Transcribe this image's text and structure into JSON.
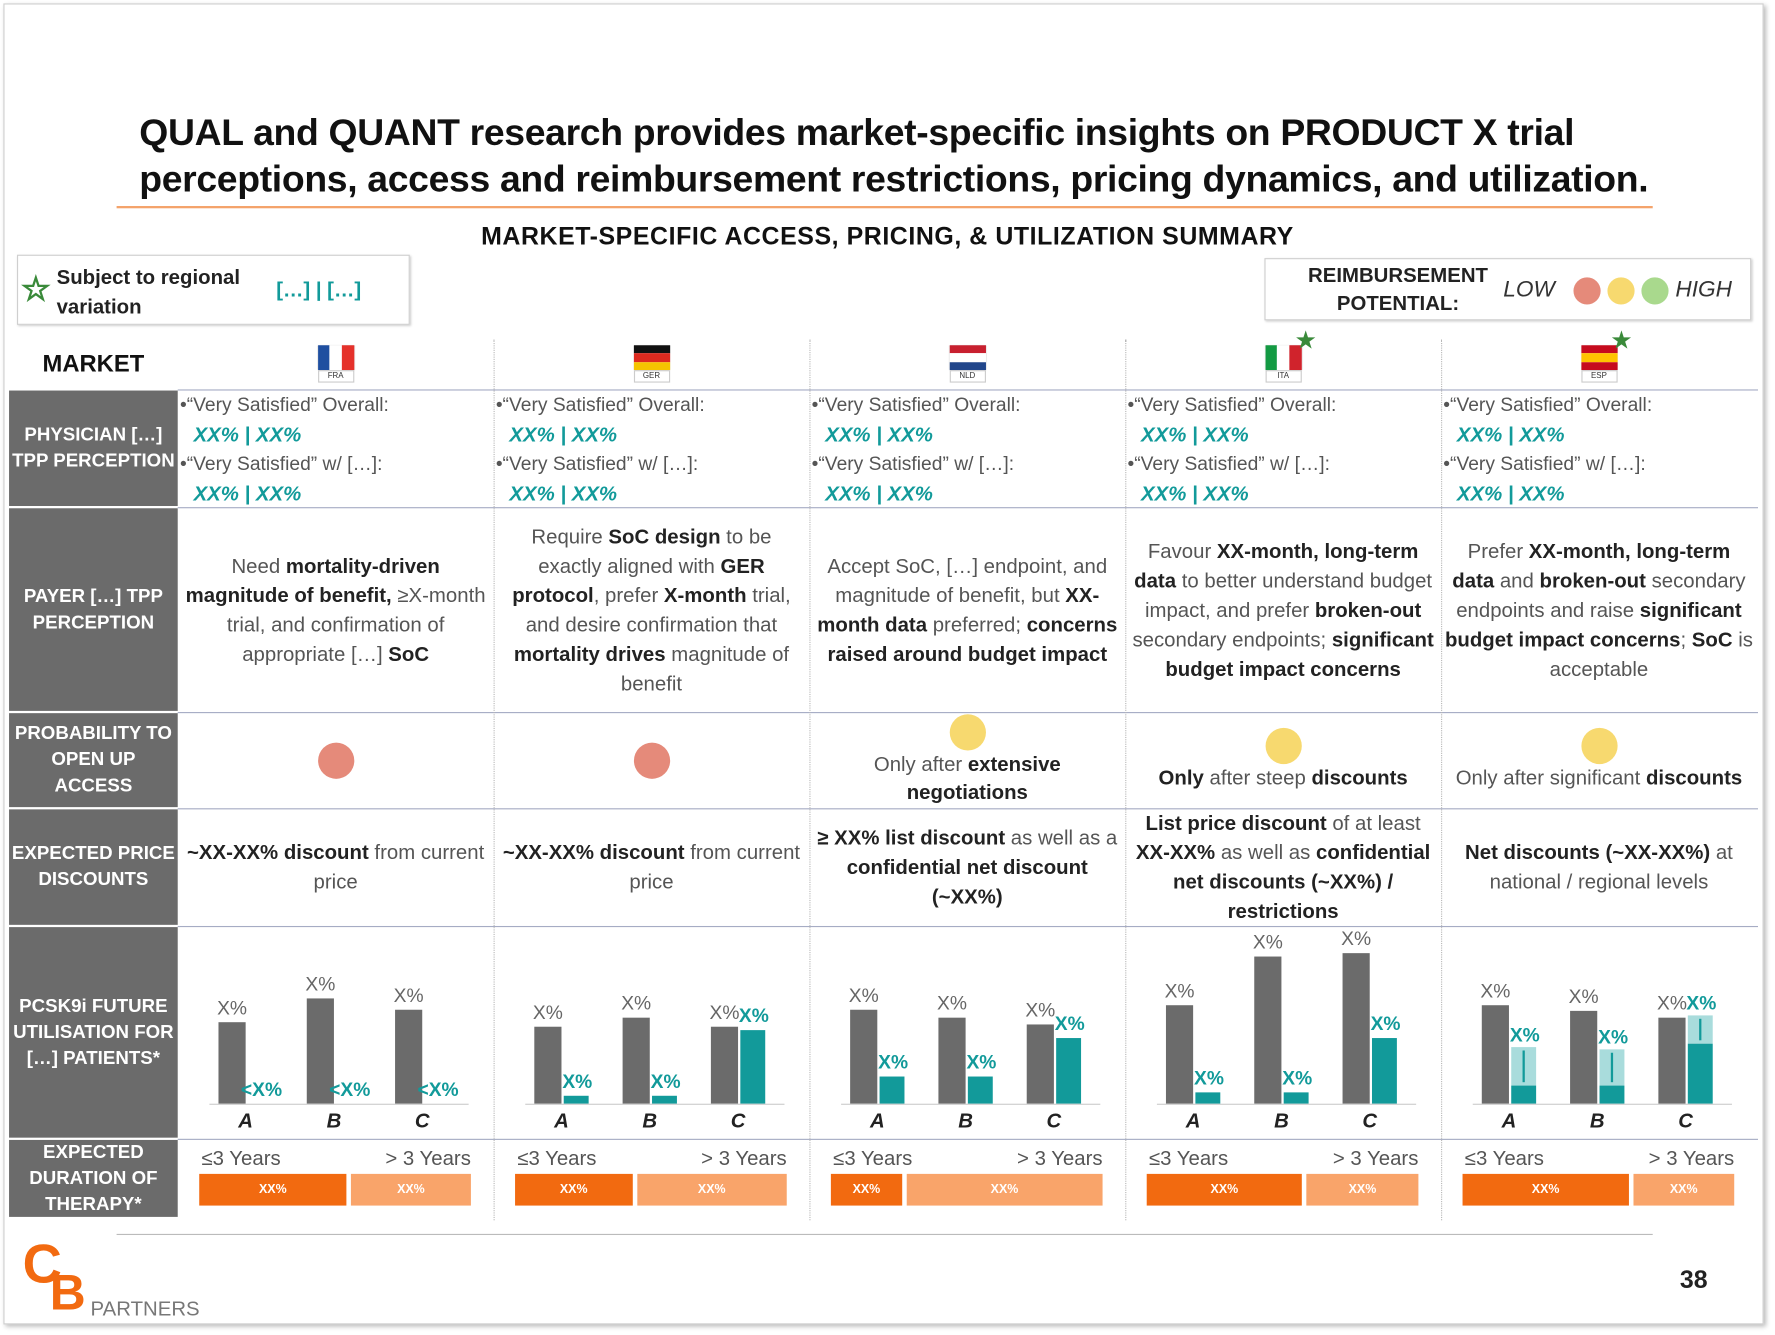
{
  "title": "QUAL and QUANT research provides market-specific insights on PRODUCT X trial perceptions, access and reimbursement restrictions, pricing dynamics, and utilization.",
  "subtitle": "MARKET-SPECIFIC ACCESS, PRICING, & UTILIZATION SUMMARY",
  "legend": {
    "star_text": "Subject to regional variation",
    "split_text": "[…] | […]"
  },
  "reimbursement": {
    "label": "REIMBURSEMENT POTENTIAL:",
    "low": "LOW",
    "high": "HIGH",
    "colors": [
      "#e58a7a",
      "#f7d96f",
      "#a9d98d"
    ]
  },
  "row_labels": [
    "MARKET",
    "PHYSICIAN […] TPP PERCEPTION",
    "PAYER […] TPP PERCEPTION",
    "PROBABILITY TO OPEN UP ACCESS",
    "EXPECTED PRICE DISCOUNTS",
    "PCSK9i FUTURE UTILISATION FOR […] PATIENTS*",
    "EXPECTED DURATION OF THERAPY*"
  ],
  "chart_ylim": [
    0,
    150
  ],
  "categories": [
    "A",
    "B",
    "C"
  ],
  "markets": [
    {
      "code": "FRA",
      "flag": [
        "#1f4fa0",
        "#ffffff",
        "#e5312b"
      ],
      "flag_dir": "vertical",
      "star": false,
      "physician": [
        {
          "label": "•“Very Satisfied” Overall:",
          "value": "XX% | XX%"
        },
        {
          "label": "•“Very Satisfied” w/ […]:",
          "value": "XX% | XX%"
        }
      ],
      "payer": [
        {
          "text": "Need "
        },
        {
          "text": "mortality-driven magnitude of benefit,",
          "bold": true
        },
        {
          "text": " ≥X-month trial, and confirmation of appropriate […] "
        },
        {
          "text": "SoC",
          "bold": true
        }
      ],
      "probability": {
        "color": "#e58a7a"
      },
      "discounts": [
        {
          "text": "~XX-XX% discount",
          "bold": true
        },
        {
          "text": " from current price"
        }
      ],
      "utilisation": {
        "gray": [
          72,
          93,
          83
        ],
        "gray_labels": [
          "X%",
          "X%",
          "X%"
        ],
        "teal": [
          0,
          0,
          0
        ],
        "teal_labels": [
          "<X%",
          "<X%",
          "<X%"
        ]
      },
      "duration": {
        "labels": [
          "≤3 Years",
          "> 3 Years"
        ],
        "short_share": 55,
        "bar_labels": [
          "XX%",
          "XX%"
        ]
      }
    },
    {
      "code": "GER",
      "flag": [
        "#111111",
        "#dd2a1f",
        "#f5c400"
      ],
      "flag_dir": "horizontal",
      "star": false,
      "physician": [
        {
          "label": "•“Very Satisfied” Overall:",
          "value": "XX% | XX%"
        },
        {
          "label": "•“Very Satisfied” w/ […]:",
          "value": "XX% | XX%"
        }
      ],
      "payer": [
        {
          "text": "Require "
        },
        {
          "text": "SoC design",
          "bold": true
        },
        {
          "text": " to be exactly aligned with "
        },
        {
          "text": "GER protocol",
          "bold": true
        },
        {
          "text": ", prefer "
        },
        {
          "text": "X-month",
          "bold": true
        },
        {
          "text": " trial, and desire confirmation that "
        },
        {
          "text": "mortality drives",
          "bold": true
        },
        {
          "text": " magnitude of benefit"
        }
      ],
      "probability": {
        "color": "#e58a7a"
      },
      "discounts": [
        {
          "text": "~XX-XX% discount",
          "bold": true
        },
        {
          "text": " from current price"
        }
      ],
      "utilisation": {
        "gray": [
          68,
          76,
          68
        ],
        "gray_labels": [
          "X%",
          "X%",
          "X%"
        ],
        "teal": [
          7,
          7,
          65
        ],
        "teal_labels": [
          "X%",
          "X%",
          "X%"
        ]
      },
      "duration": {
        "labels": [
          "≤3 Years",
          "> 3 Years"
        ],
        "short_share": 44,
        "bar_labels": [
          "XX%",
          "XX%"
        ]
      }
    },
    {
      "code": "NLD",
      "flag": [
        "#c8202f",
        "#ffffff",
        "#21468b"
      ],
      "flag_dir": "horizontal",
      "star": false,
      "physician": [
        {
          "label": "•“Very Satisfied” Overall:",
          "value": "XX% | XX%"
        },
        {
          "label": "•“Very Satisfied” w/ […]:",
          "value": "XX% | XX%"
        }
      ],
      "payer": [
        {
          "text": "Accept SoC, […] endpoint, and magnitude of benefit, but "
        },
        {
          "text": "XX-month data",
          "bold": true
        },
        {
          "text": " preferred; "
        },
        {
          "text": "concerns raised around budget impact",
          "bold": true
        }
      ],
      "probability": {
        "color": "#f7d96f",
        "text": [
          {
            "text": "Only after "
          },
          {
            "text": "extensive negotiations",
            "bold": true
          }
        ]
      },
      "discounts": [
        {
          "text": "≥ XX% list discount",
          "bold": true
        },
        {
          "text": " as well as a "
        },
        {
          "text": "confidential net discount (~XX%)",
          "bold": true
        }
      ],
      "utilisation": {
        "gray": [
          83,
          76,
          70
        ],
        "gray_labels": [
          "X%",
          "X%",
          "X%"
        ],
        "teal": [
          24,
          24,
          58
        ],
        "teal_labels": [
          "X%",
          "X%",
          "X%"
        ]
      },
      "duration": {
        "labels": [
          "≤3 Years",
          "> 3 Years"
        ],
        "short_share": 27,
        "bar_labels": [
          "XX%",
          "XX%"
        ]
      }
    },
    {
      "code": "ITA",
      "flag": [
        "#139a43",
        "#ffffff",
        "#d0232c"
      ],
      "flag_dir": "vertical",
      "star": true,
      "physician": [
        {
          "label": "•“Very Satisfied” Overall:",
          "value": "XX% | XX%"
        },
        {
          "label": "•“Very Satisfied” w/ […]:",
          "value": "XX% | XX%"
        }
      ],
      "payer": [
        {
          "text": "Favour "
        },
        {
          "text": "XX-month, long-term data",
          "bold": true
        },
        {
          "text": " to better understand budget impact, and prefer "
        },
        {
          "text": "broken-out",
          "bold": true
        },
        {
          "text": " secondary endpoints; "
        },
        {
          "text": "significant budget impact concerns",
          "bold": true
        }
      ],
      "probability": {
        "color": "#f7d96f",
        "text": [
          {
            "text": "Only",
            "bold": true
          },
          {
            "text": " after steep "
          },
          {
            "text": "discounts",
            "bold": true
          }
        ]
      },
      "discounts": [
        {
          "text": "List price discount",
          "bold": true
        },
        {
          "text": " of at least "
        },
        {
          "text": "XX-XX%",
          "bold": true
        },
        {
          "text": " as well as "
        },
        {
          "text": "confidential net discounts (~XX%) / restrictions",
          "bold": true
        }
      ],
      "utilisation": {
        "gray": [
          87,
          130,
          133
        ],
        "gray_labels": [
          "X%",
          "X%",
          "X%"
        ],
        "teal": [
          10,
          10,
          58
        ],
        "teal_labels": [
          "X%",
          "X%",
          "X%"
        ]
      },
      "duration": {
        "labels": [
          "≤3 Years",
          "> 3 Years"
        ],
        "short_share": 58,
        "bar_labels": [
          "XX%",
          "XX%"
        ]
      }
    },
    {
      "code": "ESP",
      "flag": [
        "#c60b1e",
        "#ffc400",
        "#c60b1e"
      ],
      "flag_dir": "horizontal",
      "star": true,
      "physician": [
        {
          "label": "•“Very Satisfied” Overall:",
          "value": "XX% | XX%"
        },
        {
          "label": "•“Very Satisfied” w/ […]:",
          "value": "XX% | XX%"
        }
      ],
      "payer": [
        {
          "text": "Prefer "
        },
        {
          "text": "XX-month, long-term data",
          "bold": true
        },
        {
          "text": " and "
        },
        {
          "text": "broken-out",
          "bold": true
        },
        {
          "text": " secondary endpoints and raise "
        },
        {
          "text": "significant budget impact concerns",
          "bold": true
        },
        {
          "text": "; "
        },
        {
          "text": "SoC",
          "bold": true
        },
        {
          "text": " is acceptable"
        }
      ],
      "probability": {
        "color": "#f7d96f",
        "text": [
          {
            "text": "Only after significant "
          },
          {
            "text": "discounts",
            "bold": true
          }
        ]
      },
      "discounts": [
        {
          "text": "Net discounts (~XX-XX%)",
          "bold": true
        },
        {
          "text": " at national / regional levels"
        }
      ],
      "utilisation": {
        "gray": [
          87,
          82,
          76
        ],
        "gray_labels": [
          "X%",
          "X%",
          "X%"
        ],
        "teal": [
          16,
          16,
          53
        ],
        "teal_labels": [
          "X%",
          "X%",
          "X%"
        ],
        "teal_range_top": [
          50,
          48,
          78
        ]
      },
      "duration": {
        "labels": [
          "≤3 Years",
          "> 3 Years"
        ],
        "short_share": 62,
        "bar_labels": [
          "XX%",
          "XX%"
        ]
      }
    }
  ],
  "footer": {
    "logo_c": "C",
    "logo_b": "B",
    "logo_text": "PARTNERS",
    "page": "38"
  }
}
